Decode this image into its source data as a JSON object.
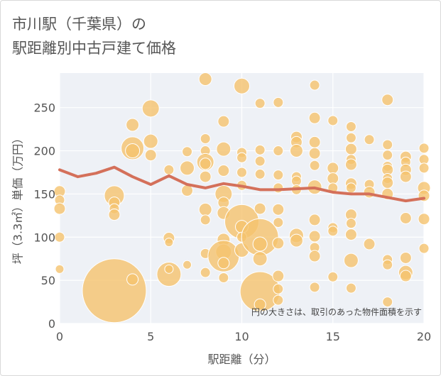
{
  "title": {
    "line1": "市川駅（千葉県）の",
    "line2": "駅距離別中古戸建て価格"
  },
  "chart_data": {
    "type": "scatter",
    "xlabel": "駅距離（分）",
    "ylabel": "坪（3.3㎡）単価（万円）",
    "xlim": [
      0,
      20
    ],
    "ylim": [
      0,
      290
    ],
    "xticks": [
      0,
      5,
      10,
      15,
      20
    ],
    "yticks": [
      0,
      50,
      100,
      150,
      200,
      250
    ],
    "grid": true,
    "note": "円の大きさは、取引のあった物件面積を示す",
    "colors": {
      "bubble": "#f5c36e",
      "trend": "#d4705a",
      "plot_bg": "#eef1f6",
      "grid": "#ffffff"
    },
    "trend_line": {
      "x": [
        0,
        1,
        2,
        3,
        4,
        5,
        6,
        7,
        8,
        9,
        10,
        11,
        12,
        13,
        14,
        15,
        16,
        17,
        18,
        19,
        20
      ],
      "y": [
        178,
        170,
        174,
        181,
        170,
        161,
        171,
        161,
        157,
        162,
        159,
        155,
        155,
        156,
        157,
        152,
        150,
        150,
        146,
        142,
        145
      ]
    },
    "bubbles": [
      {
        "x": 0,
        "y": 153,
        "s": 8
      },
      {
        "x": 0,
        "y": 143,
        "s": 7
      },
      {
        "x": 0,
        "y": 133,
        "s": 8
      },
      {
        "x": 0,
        "y": 100,
        "s": 7
      },
      {
        "x": 0,
        "y": 63,
        "s": 6
      },
      {
        "x": 3,
        "y": 38,
        "s": 45
      },
      {
        "x": 3,
        "y": 148,
        "s": 14
      },
      {
        "x": 3,
        "y": 140,
        "s": 8
      },
      {
        "x": 3,
        "y": 133,
        "s": 7
      },
      {
        "x": 3,
        "y": 126,
        "s": 8
      },
      {
        "x": 4,
        "y": 230,
        "s": 9
      },
      {
        "x": 4,
        "y": 203,
        "s": 16
      },
      {
        "x": 4,
        "y": 200,
        "s": 10
      },
      {
        "x": 4,
        "y": 51,
        "s": 8
      },
      {
        "x": 5,
        "y": 249,
        "s": 12
      },
      {
        "x": 5,
        "y": 211,
        "s": 10
      },
      {
        "x": 5,
        "y": 195,
        "s": 8
      },
      {
        "x": 6,
        "y": 178,
        "s": 7
      },
      {
        "x": 6,
        "y": 99,
        "s": 8
      },
      {
        "x": 6,
        "y": 94,
        "s": 6
      },
      {
        "x": 6,
        "y": 57,
        "s": 17
      },
      {
        "x": 6,
        "y": 63,
        "s": 6
      },
      {
        "x": 7,
        "y": 199,
        "s": 7
      },
      {
        "x": 7,
        "y": 180,
        "s": 10
      },
      {
        "x": 7,
        "y": 154,
        "s": 8
      },
      {
        "x": 7,
        "y": 68,
        "s": 6
      },
      {
        "x": 8,
        "y": 283,
        "s": 9
      },
      {
        "x": 8,
        "y": 214,
        "s": 7
      },
      {
        "x": 8,
        "y": 200,
        "s": 7
      },
      {
        "x": 8,
        "y": 187,
        "s": 12
      },
      {
        "x": 8,
        "y": 185,
        "s": 8
      },
      {
        "x": 8,
        "y": 170,
        "s": 8
      },
      {
        "x": 8,
        "y": 132,
        "s": 9
      },
      {
        "x": 8,
        "y": 120,
        "s": 7
      },
      {
        "x": 8,
        "y": 81,
        "s": 7
      },
      {
        "x": 8,
        "y": 59,
        "s": 7
      },
      {
        "x": 9,
        "y": 234,
        "s": 8
      },
      {
        "x": 9,
        "y": 202,
        "s": 10
      },
      {
        "x": 9,
        "y": 177,
        "s": 8
      },
      {
        "x": 9,
        "y": 150,
        "s": 12
      },
      {
        "x": 9,
        "y": 140,
        "s": 8
      },
      {
        "x": 9,
        "y": 128,
        "s": 9
      },
      {
        "x": 9,
        "y": 97,
        "s": 9
      },
      {
        "x": 9,
        "y": 83,
        "s": 11
      },
      {
        "x": 9,
        "y": 78,
        "s": 22
      },
      {
        "x": 9,
        "y": 70,
        "s": 8
      },
      {
        "x": 9,
        "y": 53,
        "s": 7
      },
      {
        "x": 10,
        "y": 275,
        "s": 11
      },
      {
        "x": 10,
        "y": 198,
        "s": 7
      },
      {
        "x": 10,
        "y": 192,
        "s": 7
      },
      {
        "x": 10,
        "y": 175,
        "s": 7
      },
      {
        "x": 10,
        "y": 160,
        "s": 7
      },
      {
        "x": 10,
        "y": 118,
        "s": 24
      },
      {
        "x": 10,
        "y": 112,
        "s": 9
      },
      {
        "x": 10,
        "y": 100,
        "s": 7
      },
      {
        "x": 10,
        "y": 85,
        "s": 10
      },
      {
        "x": 11,
        "y": 255,
        "s": 7
      },
      {
        "x": 11,
        "y": 201,
        "s": 7
      },
      {
        "x": 11,
        "y": 188,
        "s": 7
      },
      {
        "x": 11,
        "y": 173,
        "s": 7
      },
      {
        "x": 11,
        "y": 133,
        "s": 8
      },
      {
        "x": 11,
        "y": 100,
        "s": 26
      },
      {
        "x": 11,
        "y": 92,
        "s": 10
      },
      {
        "x": 11,
        "y": 75,
        "s": 10
      },
      {
        "x": 11,
        "y": 37,
        "s": 28
      },
      {
        "x": 11,
        "y": 22,
        "s": 8
      },
      {
        "x": 12,
        "y": 256,
        "s": 7
      },
      {
        "x": 12,
        "y": 200,
        "s": 7
      },
      {
        "x": 12,
        "y": 172,
        "s": 7
      },
      {
        "x": 12,
        "y": 157,
        "s": 7
      },
      {
        "x": 12,
        "y": 132,
        "s": 8
      },
      {
        "x": 12,
        "y": 117,
        "s": 7
      },
      {
        "x": 12,
        "y": 93,
        "s": 8
      },
      {
        "x": 12,
        "y": 55,
        "s": 8
      },
      {
        "x": 12,
        "y": 40,
        "s": 7
      },
      {
        "x": 12,
        "y": 27,
        "s": 7
      },
      {
        "x": 13,
        "y": 216,
        "s": 8
      },
      {
        "x": 13,
        "y": 210,
        "s": 8
      },
      {
        "x": 13,
        "y": 200,
        "s": 9
      },
      {
        "x": 13,
        "y": 170,
        "s": 7
      },
      {
        "x": 13,
        "y": 165,
        "s": 7
      },
      {
        "x": 13,
        "y": 155,
        "s": 7
      },
      {
        "x": 13,
        "y": 102,
        "s": 10
      },
      {
        "x": 13,
        "y": 96,
        "s": 9
      },
      {
        "x": 14,
        "y": 276,
        "s": 7
      },
      {
        "x": 14,
        "y": 238,
        "s": 8
      },
      {
        "x": 14,
        "y": 210,
        "s": 8
      },
      {
        "x": 14,
        "y": 197,
        "s": 8
      },
      {
        "x": 14,
        "y": 183,
        "s": 7
      },
      {
        "x": 14,
        "y": 158,
        "s": 10
      },
      {
        "x": 14,
        "y": 120,
        "s": 8
      },
      {
        "x": 14,
        "y": 101,
        "s": 8
      },
      {
        "x": 14,
        "y": 88,
        "s": 7
      },
      {
        "x": 14,
        "y": 78,
        "s": 8
      },
      {
        "x": 14,
        "y": 42,
        "s": 7
      },
      {
        "x": 15,
        "y": 235,
        "s": 7
      },
      {
        "x": 15,
        "y": 180,
        "s": 8
      },
      {
        "x": 15,
        "y": 168,
        "s": 8
      },
      {
        "x": 15,
        "y": 157,
        "s": 7
      },
      {
        "x": 15,
        "y": 111,
        "s": 7
      },
      {
        "x": 15,
        "y": 107,
        "s": 7
      },
      {
        "x": 15,
        "y": 54,
        "s": 7
      },
      {
        "x": 16,
        "y": 228,
        "s": 7
      },
      {
        "x": 16,
        "y": 215,
        "s": 7
      },
      {
        "x": 16,
        "y": 202,
        "s": 8
      },
      {
        "x": 16,
        "y": 190,
        "s": 7
      },
      {
        "x": 16,
        "y": 184,
        "s": 8
      },
      {
        "x": 16,
        "y": 162,
        "s": 8
      },
      {
        "x": 16,
        "y": 157,
        "s": 7
      },
      {
        "x": 16,
        "y": 126,
        "s": 8
      },
      {
        "x": 16,
        "y": 116,
        "s": 7
      },
      {
        "x": 16,
        "y": 103,
        "s": 8
      },
      {
        "x": 16,
        "y": 73,
        "s": 10
      },
      {
        "x": 16,
        "y": 41,
        "s": 7
      },
      {
        "x": 17,
        "y": 213,
        "s": 7
      },
      {
        "x": 17,
        "y": 161,
        "s": 7
      },
      {
        "x": 17,
        "y": 152,
        "s": 8
      },
      {
        "x": 17,
        "y": 92,
        "s": 8
      },
      {
        "x": 18,
        "y": 259,
        "s": 8
      },
      {
        "x": 18,
        "y": 207,
        "s": 7
      },
      {
        "x": 18,
        "y": 195,
        "s": 7
      },
      {
        "x": 18,
        "y": 182,
        "s": 7
      },
      {
        "x": 18,
        "y": 178,
        "s": 8
      },
      {
        "x": 18,
        "y": 168,
        "s": 7
      },
      {
        "x": 18,
        "y": 163,
        "s": 8
      },
      {
        "x": 18,
        "y": 150,
        "s": 8
      },
      {
        "x": 18,
        "y": 74,
        "s": 7
      },
      {
        "x": 18,
        "y": 68,
        "s": 7
      },
      {
        "x": 18,
        "y": 25,
        "s": 7
      },
      {
        "x": 19,
        "y": 193,
        "s": 8
      },
      {
        "x": 19,
        "y": 187,
        "s": 7
      },
      {
        "x": 19,
        "y": 178,
        "s": 8
      },
      {
        "x": 19,
        "y": 170,
        "s": 8
      },
      {
        "x": 19,
        "y": 122,
        "s": 8
      },
      {
        "x": 19,
        "y": 76,
        "s": 8
      },
      {
        "x": 19,
        "y": 59,
        "s": 10
      },
      {
        "x": 19,
        "y": 55,
        "s": 8
      },
      {
        "x": 20,
        "y": 203,
        "s": 7
      },
      {
        "x": 20,
        "y": 190,
        "s": 7
      },
      {
        "x": 20,
        "y": 180,
        "s": 7
      },
      {
        "x": 20,
        "y": 157,
        "s": 9
      },
      {
        "x": 20,
        "y": 148,
        "s": 8
      },
      {
        "x": 20,
        "y": 121,
        "s": 8
      },
      {
        "x": 20,
        "y": 87,
        "s": 7
      }
    ]
  }
}
